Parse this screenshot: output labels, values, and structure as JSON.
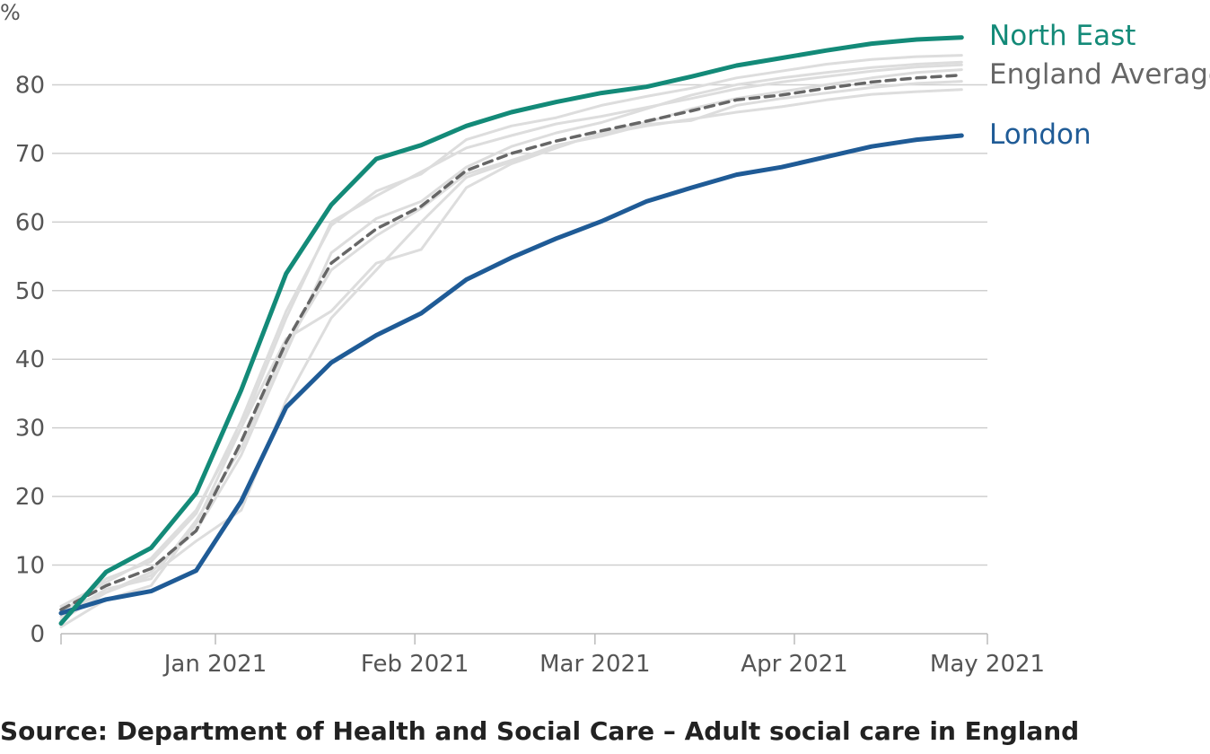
{
  "chart_data": {
    "type": "line",
    "title": "",
    "ylabel": "%",
    "xlabel": "",
    "ylim": [
      0,
      90
    ],
    "yticks": [
      0,
      10,
      20,
      30,
      40,
      50,
      60,
      70,
      80
    ],
    "xlim": [
      "2020-12-08",
      "2021-05-01"
    ],
    "xticks": [
      {
        "date": "2021-01-01",
        "label": "Jan 2021"
      },
      {
        "date": "2021-02-01",
        "label": "Feb 2021"
      },
      {
        "date": "2021-03-01",
        "label": "Mar 2021"
      },
      {
        "date": "2021-04-01",
        "label": "Apr 2021"
      },
      {
        "date": "2021-05-01",
        "label": "May 2021"
      }
    ],
    "grid": true,
    "dates": [
      "2020-12-08",
      "2020-12-15",
      "2020-12-22",
      "2020-12-29",
      "2021-01-05",
      "2021-01-12",
      "2021-01-19",
      "2021-01-26",
      "2021-02-02",
      "2021-02-09",
      "2021-02-16",
      "2021-02-23",
      "2021-03-02",
      "2021-03-09",
      "2021-03-16",
      "2021-03-23",
      "2021-03-30",
      "2021-04-06",
      "2021-04-13",
      "2021-04-20",
      "2021-04-27"
    ],
    "series": [
      {
        "name": "North East",
        "color": "#138a78",
        "style": "solid",
        "highlight": true,
        "values": [
          1.5,
          9,
          12.5,
          20.5,
          35.5,
          52.5,
          62.5,
          69.2,
          71.2,
          74.0,
          76.0,
          77.5,
          78.8,
          79.7,
          81.2,
          82.8,
          83.9,
          85.0,
          86.0,
          86.6,
          86.9
        ]
      },
      {
        "name": "England Average",
        "color": "#666666",
        "style": "dashed",
        "highlight": true,
        "values": [
          3.5,
          7,
          9.5,
          15.0,
          28.0,
          42.5,
          54.0,
          59.0,
          62.3,
          67.5,
          70.0,
          71.8,
          73.3,
          74.7,
          76.2,
          77.8,
          78.5,
          79.5,
          80.4,
          81.0,
          81.4
        ]
      },
      {
        "name": "London",
        "color": "#1f5b96",
        "style": "solid",
        "highlight": true,
        "values": [
          3.0,
          5.0,
          6.2,
          9.2,
          19.3,
          33.0,
          39.5,
          43.5,
          46.7,
          51.6,
          54.8,
          57.6,
          60.1,
          63.0,
          65.0,
          66.9,
          68.0,
          69.5,
          71.0,
          72.0,
          72.6
        ]
      },
      {
        "name": "",
        "color": "#dddddd",
        "style": "solid",
        "highlight": false,
        "values": [
          1.0,
          5.0,
          7.0,
          16.0,
          30.0,
          43.0,
          47.0,
          54.0,
          56.0,
          65.0,
          68.5,
          70.8,
          73.0,
          74.5,
          76.5,
          78.0,
          79.0,
          80.0,
          81.0,
          81.8,
          82.2
        ]
      },
      {
        "name": "",
        "color": "#dddddd",
        "style": "solid",
        "highlight": false,
        "values": [
          2.5,
          6.5,
          8.0,
          16.5,
          27.0,
          42.0,
          53.0,
          58.0,
          62.0,
          67.0,
          69.0,
          71.0,
          72.8,
          74.0,
          75.0,
          76.0,
          76.8,
          77.8,
          78.6,
          79.0,
          79.3
        ]
      },
      {
        "name": "",
        "color": "#dddddd",
        "style": "solid",
        "highlight": false,
        "values": [
          3.0,
          8.0,
          10.5,
          17.5,
          31.0,
          47.0,
          59.5,
          64.5,
          67.0,
          72.0,
          74.0,
          75.2,
          77.0,
          78.3,
          79.5,
          81.0,
          82.0,
          83.0,
          83.7,
          84.1,
          84.3
        ]
      },
      {
        "name": "",
        "color": "#dddddd",
        "style": "solid",
        "highlight": false,
        "values": [
          4.0,
          7.5,
          11.0,
          18.0,
          30.0,
          46.0,
          60.0,
          63.8,
          67.3,
          70.8,
          72.6,
          74.3,
          75.4,
          76.7,
          78.0,
          79.4,
          80.4,
          81.2,
          82.0,
          82.6,
          82.9
        ]
      },
      {
        "name": "",
        "color": "#dddddd",
        "style": "solid",
        "highlight": false,
        "values": [
          2.0,
          6.0,
          9.0,
          15.0,
          26.0,
          41.0,
          55.5,
          60.5,
          63.0,
          68.0,
          71.0,
          73.0,
          74.5,
          76.5,
          78.5,
          80.0,
          81.0,
          81.8,
          82.5,
          83.0,
          83.3
        ]
      },
      {
        "name": "",
        "color": "#dddddd",
        "style": "solid",
        "highlight": false,
        "values": [
          3.5,
          6.0,
          8.5,
          13.5,
          18.0,
          34.0,
          46.0,
          53.0,
          60.0,
          66.5,
          68.8,
          71.2,
          72.5,
          74.2,
          74.8,
          77.0,
          78.0,
          78.8,
          79.6,
          80.2,
          80.5
        ]
      }
    ]
  },
  "source": "Source: Department of Health and Social Care – Adult social care in England"
}
